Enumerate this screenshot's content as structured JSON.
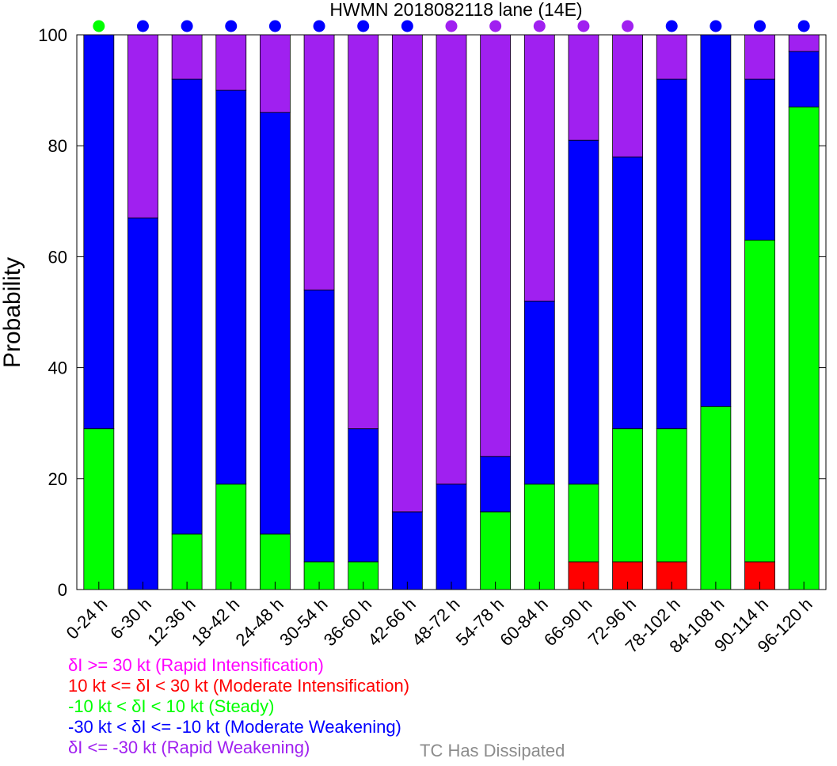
{
  "chart_data": {
    "type": "bar",
    "stacked": true,
    "title": "HWMN 2018082118 lane (14E)",
    "ylabel": "Probability",
    "xlabel": "",
    "ylim": [
      0,
      100
    ],
    "yticks": [
      0,
      20,
      40,
      60,
      80,
      100
    ],
    "categories": [
      "0-24 h",
      "6-30 h",
      "12-36 h",
      "18-42 h",
      "24-48 h",
      "30-54 h",
      "36-60 h",
      "42-66 h",
      "48-72 h",
      "54-78 h",
      "60-84 h",
      "66-90 h",
      "72-96 h",
      "78-102 h",
      "84-108 h",
      "90-114 h",
      "96-120 h"
    ],
    "series": [
      {
        "name": "δI >= 30 kt (Rapid Intensification)",
        "color": "#ff00ff",
        "values": [
          0,
          0,
          0,
          0,
          0,
          0,
          0,
          0,
          0,
          0,
          0,
          0,
          0,
          0,
          0,
          0,
          0
        ]
      },
      {
        "name": "10 kt <= δI < 30 kt (Moderate Intensification)",
        "color": "#ff0000",
        "values": [
          0,
          0,
          0,
          0,
          0,
          0,
          0,
          0,
          0,
          0,
          0,
          5,
          5,
          5,
          0,
          5,
          0
        ]
      },
      {
        "name": "-10 kt < δI < 10 kt (Steady)",
        "color": "#00ff00",
        "values": [
          29,
          0,
          10,
          19,
          10,
          5,
          5,
          0,
          0,
          14,
          19,
          14,
          24,
          24,
          33,
          58,
          87
        ]
      },
      {
        "name": "-30 kt < δI <= -10 kt (Moderate Weakening)",
        "color": "#0000ff",
        "values": [
          71,
          67,
          82,
          71,
          76,
          49,
          24,
          14,
          19,
          10,
          33,
          62,
          49,
          63,
          67,
          29,
          10
        ]
      },
      {
        "name": "δI <= -30 kt (Rapid Weakening)",
        "color": "#a020f0",
        "values": [
          0,
          33,
          8,
          10,
          14,
          46,
          71,
          86,
          81,
          76,
          48,
          19,
          22,
          8,
          0,
          8,
          3
        ]
      }
    ],
    "top_markers": [
      "#00ff00",
      "#0000ff",
      "#0000ff",
      "#0000ff",
      "#0000ff",
      "#0000ff",
      "#0000ff",
      "#0000ff",
      "#a020f0",
      "#a020f0",
      "#a020f0",
      "#a020f0",
      "#a020f0",
      "#0000ff",
      "#0000ff",
      "#0000ff",
      "#0000ff"
    ],
    "legend": [
      {
        "text": "δI >= 30 kt (Rapid Intensification)",
        "color": "#ff00ff"
      },
      {
        "text": "10 kt <= δI < 30 kt (Moderate Intensification)",
        "color": "#ff0000"
      },
      {
        "text": "-10 kt < δI < 10 kt (Steady)",
        "color": "#00ff00"
      },
      {
        "text": "-30 kt < δI <= -10 kt (Moderate Weakening)",
        "color": "#0000ff"
      },
      {
        "text": "δI <= -30 kt (Rapid Weakening)",
        "color": "#a020f0"
      }
    ],
    "note": {
      "text": "TC Has Dissipated",
      "color": "#8c8c8c"
    }
  }
}
